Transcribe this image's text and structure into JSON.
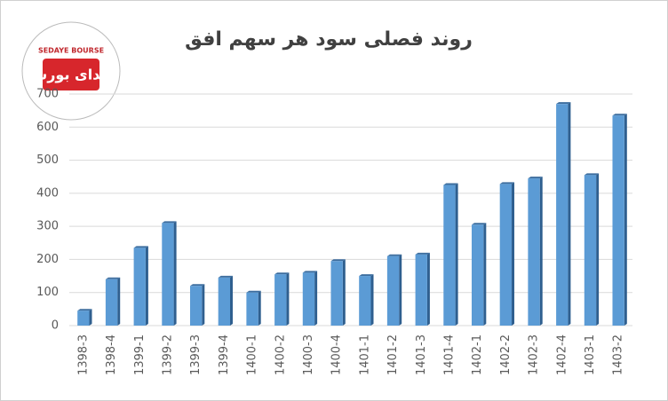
{
  "chart_data": {
    "type": "bar",
    "title": "روند فصلی سود هر سهم افق",
    "logo": {
      "latin": "SEDAYE BOURSE",
      "persian": "صدای بورس"
    },
    "categories": [
      "1398-3",
      "1398-4",
      "1399-1",
      "1399-2",
      "1399-3",
      "1399-4",
      "1400-1",
      "1400-2",
      "1400-3",
      "1400-4",
      "1401-1",
      "1401-2",
      "1401-3",
      "1401-4",
      "1402-1",
      "1402-2",
      "1402-3",
      "1402-4",
      "1403-1",
      "1403-2"
    ],
    "values": [
      45,
      140,
      235,
      310,
      120,
      145,
      100,
      155,
      160,
      195,
      150,
      210,
      215,
      425,
      305,
      428,
      445,
      670,
      455,
      635
    ],
    "color": "#5b9bd5",
    "ylim": [
      0,
      700
    ],
    "yticks": [
      0,
      100,
      200,
      300,
      400,
      500,
      600,
      700
    ],
    "grid": true
  }
}
